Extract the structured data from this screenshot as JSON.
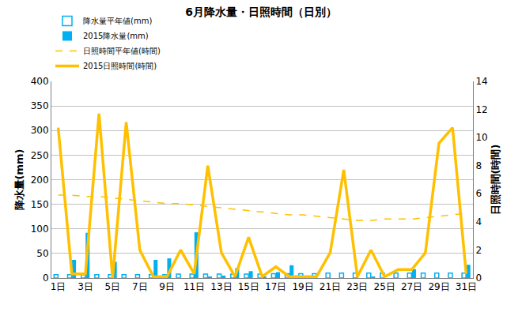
{
  "chart_data": {
    "type": "combo",
    "title": "6月降水量・日照時間（日別）",
    "y_label": "降水量(mm)",
    "y2_label": "日照時間(時間)",
    "categories": [
      "1日",
      null,
      "3日",
      null,
      "5日",
      null,
      "7日",
      null,
      "9日",
      null,
      "11日",
      null,
      "13日",
      null,
      "15日",
      null,
      "17日",
      null,
      "19日",
      null,
      "21日",
      null,
      "23日",
      null,
      "25日",
      null,
      "27日",
      null,
      "29日",
      null,
      "31日"
    ],
    "ylim": [
      0,
      400
    ],
    "yticks": [
      0,
      50,
      100,
      150,
      200,
      250,
      300,
      350,
      400
    ],
    "y2lim": [
      0,
      14
    ],
    "y2ticks": [
      0,
      2,
      4,
      6,
      8,
      10,
      12,
      14
    ],
    "grid": true,
    "legend": "top",
    "series": [
      {
        "name": "降水量平年値(mm)",
        "type": "bar",
        "marker": "hollow",
        "color": "#00b0f0",
        "values": [
          7,
          7,
          7,
          7,
          7,
          7,
          7,
          7,
          7,
          8,
          8,
          8,
          8,
          8,
          8,
          8,
          9,
          9,
          9,
          9,
          10,
          10,
          10,
          10,
          10,
          10,
          10,
          10,
          10,
          10,
          10
        ]
      },
      {
        "name": "2015降水量(mm)",
        "type": "bar",
        "color": "#00b0f0",
        "values": [
          0,
          37,
          92,
          0,
          33,
          0,
          0,
          37,
          40,
          0,
          93,
          3,
          5,
          20,
          14,
          3,
          12,
          26,
          0,
          0,
          0,
          0,
          0,
          3,
          0,
          0,
          18,
          0,
          0,
          0,
          27
        ]
      },
      {
        "name": "日照時間平年値(時間)",
        "type": "line",
        "line_style": "dashed",
        "color": "#ffc000",
        "axis": "y2",
        "values": [
          5.9,
          5.9,
          5.8,
          5.8,
          5.7,
          5.6,
          5.5,
          5.4,
          5.3,
          5.3,
          5.2,
          5.1,
          5.0,
          4.9,
          4.8,
          4.7,
          4.6,
          4.5,
          4.5,
          4.4,
          4.3,
          4.2,
          4.1,
          4.1,
          4.2,
          4.2,
          4.2,
          4.3,
          4.4,
          4.5,
          4.6
        ]
      },
      {
        "name": "2015日照時間(時間)",
        "type": "line",
        "line_style": "solid",
        "color": "#ffc000",
        "axis": "y2",
        "values": [
          10.7,
          0.3,
          0.3,
          11.7,
          0,
          11.1,
          2,
          0.1,
          0.1,
          2,
          0.3,
          8.0,
          1.8,
          0.1,
          2.9,
          0.1,
          0.8,
          0.1,
          0.1,
          0.1,
          1.8,
          7.7,
          0.1,
          2.0,
          0.1,
          0.6,
          0.6,
          1.8,
          9.6,
          10.7,
          0.3
        ]
      }
    ]
  }
}
